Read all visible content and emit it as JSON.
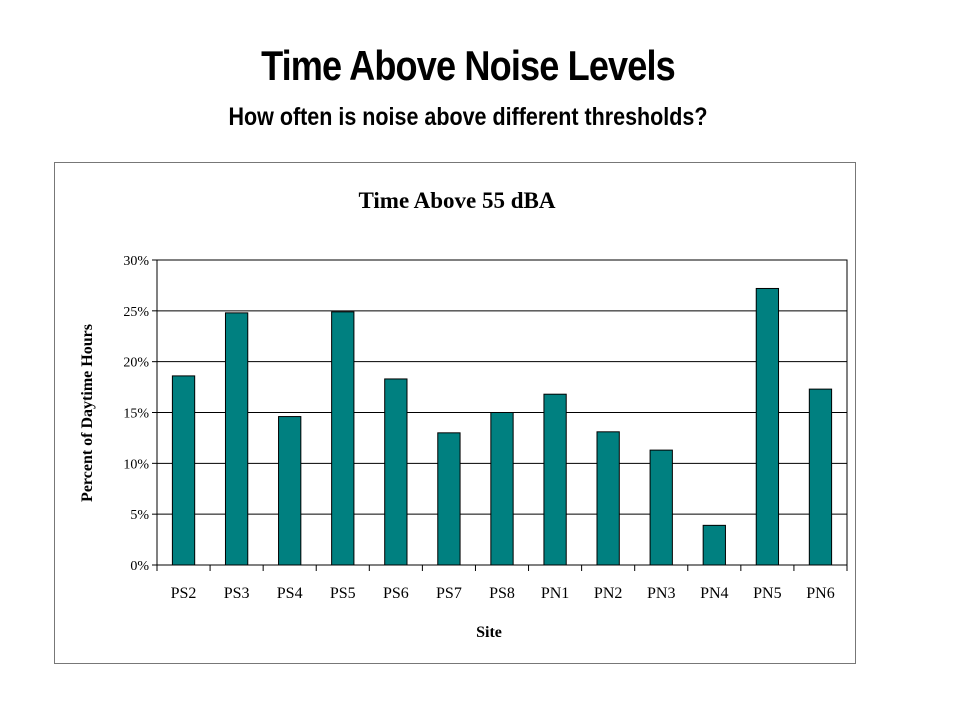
{
  "slide": {
    "title": "Time Above Noise Levels",
    "subtitle": "How often is noise above different thresholds?"
  },
  "chart_data": {
    "type": "bar",
    "title": "Time Above 55 dBA",
    "xlabel": "Site",
    "ylabel": "Percent of Daytime Hours",
    "categories": [
      "PS2",
      "PS3",
      "PS4",
      "PS5",
      "PS6",
      "PS7",
      "PS8",
      "PN1",
      "PN2",
      "PN3",
      "PN4",
      "PN5",
      "PN6"
    ],
    "values": [
      18.6,
      24.8,
      14.6,
      24.9,
      18.3,
      13.0,
      15.0,
      16.8,
      13.1,
      11.3,
      3.9,
      27.2,
      17.3
    ],
    "ylim": [
      0,
      30
    ],
    "yticks": [
      "0%",
      "5%",
      "10%",
      "15%",
      "20%",
      "25%",
      "30%"
    ],
    "grid": true,
    "legend": "none",
    "bar_color": "#008080"
  }
}
